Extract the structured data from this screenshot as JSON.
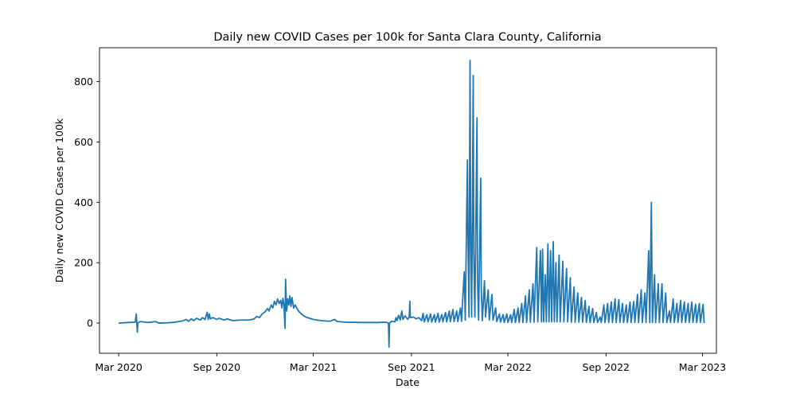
{
  "chart_data": {
    "type": "line",
    "title": "Daily new COVID Cases per 100k for Santa Clara County, California",
    "xlabel": "Date",
    "ylabel": "Daily new COVID Cases per 100k",
    "x_range": [
      "2020-01-25",
      "2023-03-27"
    ],
    "ylim": [
      -100,
      912
    ],
    "x_ticks": [
      {
        "date": "2020-03-01",
        "label": "Mar 2020"
      },
      {
        "date": "2020-09-01",
        "label": "Sep 2020"
      },
      {
        "date": "2021-03-01",
        "label": "Mar 2021"
      },
      {
        "date": "2021-09-01",
        "label": "Sep 2021"
      },
      {
        "date": "2022-03-01",
        "label": "Mar 2022"
      },
      {
        "date": "2022-09-01",
        "label": "Sep 2022"
      },
      {
        "date": "2023-03-01",
        "label": "Mar 2023"
      }
    ],
    "y_ticks": [
      0,
      200,
      400,
      600,
      800
    ],
    "grid": false,
    "legend": "none",
    "series_color": "#1f77b4",
    "series": [
      {
        "points": [
          [
            "2020-03-01",
            0
          ],
          [
            "2020-03-20",
            2
          ],
          [
            "2020-04-01",
            3
          ],
          [
            "2020-04-03",
            30
          ],
          [
            "2020-04-04",
            0
          ],
          [
            "2020-04-05",
            -30
          ],
          [
            "2020-04-06",
            0
          ],
          [
            "2020-04-10",
            5
          ],
          [
            "2020-04-25",
            2
          ],
          [
            "2020-05-10",
            5
          ],
          [
            "2020-05-15",
            0
          ],
          [
            "2020-06-01",
            1
          ],
          [
            "2020-06-15",
            3
          ],
          [
            "2020-07-01",
            8
          ],
          [
            "2020-07-05",
            12
          ],
          [
            "2020-07-10",
            6
          ],
          [
            "2020-07-15",
            14
          ],
          [
            "2020-07-20",
            8
          ],
          [
            "2020-07-25",
            16
          ],
          [
            "2020-08-01",
            10
          ],
          [
            "2020-08-05",
            18
          ],
          [
            "2020-08-10",
            12
          ],
          [
            "2020-08-14",
            36
          ],
          [
            "2020-08-16",
            12
          ],
          [
            "2020-08-18",
            30
          ],
          [
            "2020-08-20",
            14
          ],
          [
            "2020-08-25",
            18
          ],
          [
            "2020-09-01",
            12
          ],
          [
            "2020-09-05",
            16
          ],
          [
            "2020-09-15",
            10
          ],
          [
            "2020-09-20",
            14
          ],
          [
            "2020-10-01",
            8
          ],
          [
            "2020-10-15",
            10
          ],
          [
            "2020-11-01",
            10
          ],
          [
            "2020-11-10",
            14
          ],
          [
            "2020-11-15",
            22
          ],
          [
            "2020-11-20",
            18
          ],
          [
            "2020-11-25",
            30
          ],
          [
            "2020-12-01",
            38
          ],
          [
            "2020-12-05",
            48
          ],
          [
            "2020-12-08",
            40
          ],
          [
            "2020-12-12",
            60
          ],
          [
            "2020-12-15",
            50
          ],
          [
            "2020-12-18",
            72
          ],
          [
            "2020-12-21",
            60
          ],
          [
            "2020-12-24",
            80
          ],
          [
            "2020-12-27",
            65
          ],
          [
            "2020-12-30",
            75
          ],
          [
            "2021-01-01",
            50
          ],
          [
            "2021-01-03",
            82
          ],
          [
            "2021-01-05",
            60
          ],
          [
            "2021-01-07",
            -18
          ],
          [
            "2021-01-08",
            145
          ],
          [
            "2021-01-10",
            40
          ],
          [
            "2021-01-12",
            80
          ],
          [
            "2021-01-14",
            60
          ],
          [
            "2021-01-16",
            90
          ],
          [
            "2021-01-18",
            55
          ],
          [
            "2021-01-20",
            85
          ],
          [
            "2021-01-23",
            50
          ],
          [
            "2021-01-26",
            60
          ],
          [
            "2021-02-01",
            40
          ],
          [
            "2021-02-08",
            28
          ],
          [
            "2021-02-15",
            20
          ],
          [
            "2021-03-01",
            12
          ],
          [
            "2021-03-15",
            8
          ],
          [
            "2021-04-01",
            6
          ],
          [
            "2021-04-10",
            12
          ],
          [
            "2021-04-15",
            5
          ],
          [
            "2021-05-01",
            3
          ],
          [
            "2021-06-01",
            2
          ],
          [
            "2021-07-01",
            2
          ],
          [
            "2021-07-15",
            3
          ],
          [
            "2021-07-20",
            0
          ],
          [
            "2021-07-21",
            -80
          ],
          [
            "2021-07-22",
            0
          ],
          [
            "2021-07-26",
            6
          ],
          [
            "2021-08-01",
            4
          ],
          [
            "2021-08-03",
            18
          ],
          [
            "2021-08-05",
            8
          ],
          [
            "2021-08-08",
            26
          ],
          [
            "2021-08-11",
            10
          ],
          [
            "2021-08-14",
            40
          ],
          [
            "2021-08-16",
            12
          ],
          [
            "2021-08-20",
            24
          ],
          [
            "2021-08-25",
            12
          ],
          [
            "2021-08-28",
            22
          ],
          [
            "2021-08-29",
            72
          ],
          [
            "2021-08-30",
            18
          ],
          [
            "2021-09-05",
            20
          ],
          [
            "2021-09-10",
            14
          ],
          [
            "2021-09-15",
            18
          ],
          [
            "2021-09-20",
            8
          ],
          [
            "2021-09-23",
            32
          ],
          [
            "2021-09-25",
            4
          ],
          [
            "2021-09-30",
            28
          ],
          [
            "2021-10-02",
            4
          ],
          [
            "2021-10-07",
            30
          ],
          [
            "2021-10-09",
            3
          ],
          [
            "2021-10-14",
            28
          ],
          [
            "2021-10-16",
            3
          ],
          [
            "2021-10-21",
            32
          ],
          [
            "2021-10-23",
            3
          ],
          [
            "2021-10-28",
            28
          ],
          [
            "2021-10-30",
            4
          ],
          [
            "2021-11-04",
            35
          ],
          [
            "2021-11-06",
            4
          ],
          [
            "2021-11-11",
            40
          ],
          [
            "2021-11-13",
            5
          ],
          [
            "2021-11-18",
            45
          ],
          [
            "2021-11-20",
            5
          ],
          [
            "2021-11-25",
            40
          ],
          [
            "2021-11-27",
            5
          ],
          [
            "2021-12-02",
            50
          ],
          [
            "2021-12-04",
            6
          ],
          [
            "2021-12-09",
            170
          ],
          [
            "2021-12-11",
            10
          ],
          [
            "2021-12-15",
            540
          ],
          [
            "2021-12-16",
            300
          ],
          [
            "2021-12-18",
            20
          ],
          [
            "2021-12-20",
            870
          ],
          [
            "2021-12-21",
            330
          ],
          [
            "2021-12-23",
            20
          ],
          [
            "2021-12-26",
            820
          ],
          [
            "2021-12-27",
            230
          ],
          [
            "2021-12-29",
            20
          ],
          [
            "2022-01-02",
            680
          ],
          [
            "2022-01-03",
            140
          ],
          [
            "2022-01-05",
            10
          ],
          [
            "2022-01-09",
            480
          ],
          [
            "2022-01-10",
            120
          ],
          [
            "2022-01-12",
            8
          ],
          [
            "2022-01-16",
            140
          ],
          [
            "2022-01-18",
            20
          ],
          [
            "2022-01-23",
            110
          ],
          [
            "2022-01-25",
            10
          ],
          [
            "2022-01-30",
            95
          ],
          [
            "2022-02-01",
            10
          ],
          [
            "2022-02-06",
            50
          ],
          [
            "2022-02-08",
            5
          ],
          [
            "2022-02-13",
            30
          ],
          [
            "2022-02-15",
            3
          ],
          [
            "2022-02-20",
            28
          ],
          [
            "2022-02-22",
            2
          ],
          [
            "2022-02-27",
            30
          ],
          [
            "2022-03-01",
            2
          ],
          [
            "2022-03-06",
            28
          ],
          [
            "2022-03-08",
            2
          ],
          [
            "2022-03-13",
            45
          ],
          [
            "2022-03-15",
            2
          ],
          [
            "2022-03-20",
            50
          ],
          [
            "2022-03-22",
            2
          ],
          [
            "2022-03-27",
            65
          ],
          [
            "2022-03-29",
            2
          ],
          [
            "2022-04-03",
            90
          ],
          [
            "2022-04-05",
            2
          ],
          [
            "2022-04-10",
            110
          ],
          [
            "2022-04-12",
            3
          ],
          [
            "2022-04-17",
            130
          ],
          [
            "2022-04-19",
            3
          ],
          [
            "2022-04-24",
            250
          ],
          [
            "2022-04-26",
            4
          ],
          [
            "2022-05-01",
            240
          ],
          [
            "2022-05-03",
            4
          ],
          [
            "2022-05-05",
            245
          ],
          [
            "2022-05-07",
            4
          ],
          [
            "2022-05-10",
            160
          ],
          [
            "2022-05-12",
            4
          ],
          [
            "2022-05-15",
            262
          ],
          [
            "2022-05-17",
            4
          ],
          [
            "2022-05-20",
            240
          ],
          [
            "2022-05-22",
            4
          ],
          [
            "2022-05-25",
            270
          ],
          [
            "2022-05-27",
            4
          ],
          [
            "2022-05-30",
            200
          ],
          [
            "2022-06-01",
            4
          ],
          [
            "2022-06-05",
            225
          ],
          [
            "2022-06-07",
            4
          ],
          [
            "2022-06-12",
            205
          ],
          [
            "2022-06-14",
            4
          ],
          [
            "2022-06-19",
            180
          ],
          [
            "2022-06-21",
            4
          ],
          [
            "2022-06-26",
            150
          ],
          [
            "2022-06-28",
            3
          ],
          [
            "2022-07-03",
            120
          ],
          [
            "2022-07-05",
            3
          ],
          [
            "2022-07-10",
            100
          ],
          [
            "2022-07-12",
            3
          ],
          [
            "2022-07-17",
            85
          ],
          [
            "2022-07-19",
            3
          ],
          [
            "2022-07-24",
            75
          ],
          [
            "2022-07-26",
            2
          ],
          [
            "2022-07-31",
            55
          ],
          [
            "2022-08-02",
            2
          ],
          [
            "2022-08-07",
            48
          ],
          [
            "2022-08-09",
            2
          ],
          [
            "2022-08-14",
            35
          ],
          [
            "2022-08-16",
            2
          ],
          [
            "2022-08-21",
            20
          ],
          [
            "2022-08-23",
            2
          ],
          [
            "2022-08-28",
            60
          ],
          [
            "2022-08-30",
            2
          ],
          [
            "2022-09-04",
            65
          ],
          [
            "2022-09-06",
            2
          ],
          [
            "2022-09-11",
            70
          ],
          [
            "2022-09-13",
            2
          ],
          [
            "2022-09-18",
            80
          ],
          [
            "2022-09-20",
            2
          ],
          [
            "2022-09-25",
            78
          ],
          [
            "2022-09-27",
            2
          ],
          [
            "2022-10-02",
            65
          ],
          [
            "2022-10-04",
            2
          ],
          [
            "2022-10-09",
            60
          ],
          [
            "2022-10-11",
            2
          ],
          [
            "2022-10-16",
            70
          ],
          [
            "2022-10-18",
            2
          ],
          [
            "2022-10-23",
            72
          ],
          [
            "2022-10-25",
            2
          ],
          [
            "2022-10-30",
            95
          ],
          [
            "2022-11-01",
            2
          ],
          [
            "2022-11-06",
            110
          ],
          [
            "2022-11-08",
            2
          ],
          [
            "2022-11-13",
            100
          ],
          [
            "2022-11-15",
            2
          ],
          [
            "2022-11-20",
            240
          ],
          [
            "2022-11-22",
            2
          ],
          [
            "2022-11-25",
            400
          ],
          [
            "2022-11-27",
            2
          ],
          [
            "2022-12-01",
            160
          ],
          [
            "2022-12-03",
            2
          ],
          [
            "2022-12-08",
            130
          ],
          [
            "2022-12-10",
            2
          ],
          [
            "2022-12-15",
            130
          ],
          [
            "2022-12-17",
            2
          ],
          [
            "2022-12-22",
            100
          ],
          [
            "2022-12-24",
            2
          ],
          [
            "2022-12-29",
            40
          ],
          [
            "2022-12-31",
            2
          ],
          [
            "2023-01-05",
            80
          ],
          [
            "2023-01-07",
            2
          ],
          [
            "2023-01-12",
            65
          ],
          [
            "2023-01-14",
            2
          ],
          [
            "2023-01-19",
            75
          ],
          [
            "2023-01-21",
            2
          ],
          [
            "2023-01-26",
            70
          ],
          [
            "2023-01-28",
            2
          ],
          [
            "2023-02-02",
            65
          ],
          [
            "2023-02-04",
            2
          ],
          [
            "2023-02-09",
            70
          ],
          [
            "2023-02-11",
            2
          ],
          [
            "2023-02-16",
            62
          ],
          [
            "2023-02-18",
            2
          ],
          [
            "2023-02-23",
            65
          ],
          [
            "2023-02-25",
            2
          ],
          [
            "2023-03-02",
            62
          ],
          [
            "2023-03-04",
            0
          ]
        ]
      }
    ]
  }
}
